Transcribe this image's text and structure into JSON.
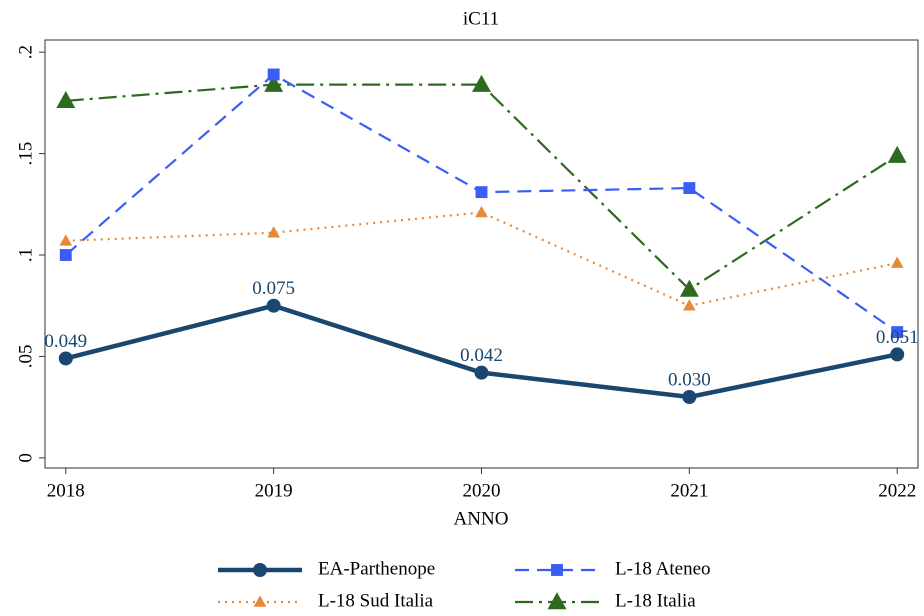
{
  "chart_data": {
    "type": "line",
    "title": "iC11",
    "xlabel": "ANNO",
    "x": [
      2018,
      2019,
      2020,
      2021,
      2022
    ],
    "xlim": [
      2017.9,
      2022.1
    ],
    "xticks": [
      2018,
      2019,
      2020,
      2021,
      2022
    ],
    "ylim": [
      -0.005,
      0.206
    ],
    "yticks": [
      0,
      {
        "value": 0.05,
        "label": ".05"
      },
      {
        "value": 0.1,
        "label": ".1"
      },
      {
        "value": 0.15,
        "label": ".15"
      },
      {
        "value": 0.2,
        "label": ".2"
      }
    ],
    "grid": false,
    "legend": "bottom",
    "series": [
      {
        "name": "EA-Parthenope",
        "color": "#1a476f",
        "dash": "solid",
        "marker": "circle",
        "values": [
          0.049,
          0.075,
          0.042,
          0.03,
          0.051
        ],
        "value_labels": [
          "0.049",
          "0.075",
          "0.042",
          "0.030",
          "0.051"
        ]
      },
      {
        "name": "L-18 Ateneo",
        "color": "#3a5ef5",
        "dash": "dash",
        "marker": "square",
        "values": [
          0.1,
          0.189,
          0.131,
          0.133,
          0.062
        ]
      },
      {
        "name": "L-18 Sud Italia",
        "color": "#e8893a",
        "dash": "dot",
        "marker": "triangle",
        "values": [
          0.107,
          0.111,
          0.121,
          0.075,
          0.096
        ]
      },
      {
        "name": "L-18 Italia",
        "color": "#2d6a1f",
        "dash": "dashdot",
        "marker": "triangle",
        "values": [
          0.176,
          0.184,
          0.184,
          0.083,
          0.149
        ]
      }
    ]
  }
}
